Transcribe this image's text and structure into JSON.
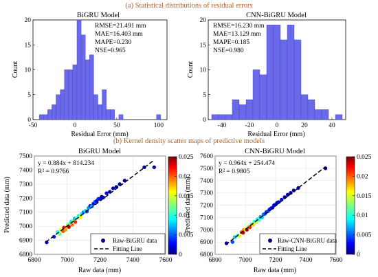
{
  "section_a_title": "(a) Statistical distributions of residual errors",
  "section_b_title": "(b) Kernel density scatter maps of predictive models",
  "colors": {
    "bar": "#6a6ae8",
    "bar_edge": "#3a3ad0",
    "title": "#b0612a",
    "point": "#00007f",
    "fit": "#000000"
  },
  "chart_data": [
    {
      "type": "bar",
      "title": "BiGRU Model",
      "xlabel": "Residual Error (mm)",
      "ylabel": "Count",
      "xlim": [
        -50,
        110
      ],
      "ylim": [
        0,
        20
      ],
      "xticks": [
        -50,
        0,
        50,
        100
      ],
      "yticks": [
        0,
        5,
        10,
        15,
        20
      ],
      "bin_width": 5,
      "bins": [
        {
          "x": -40,
          "count": 1
        },
        {
          "x": -35,
          "count": 1
        },
        {
          "x": -30,
          "count": 2
        },
        {
          "x": -25,
          "count": 3
        },
        {
          "x": -20,
          "count": 5
        },
        {
          "x": -15,
          "count": 6
        },
        {
          "x": -10,
          "count": 10
        },
        {
          "x": -5,
          "count": 10
        },
        {
          "x": 0,
          "count": 11
        },
        {
          "x": 5,
          "count": 20
        },
        {
          "x": 10,
          "count": 17
        },
        {
          "x": 15,
          "count": 12
        },
        {
          "x": 20,
          "count": 13
        },
        {
          "x": 25,
          "count": 5
        },
        {
          "x": 30,
          "count": 3
        },
        {
          "x": 35,
          "count": 6
        },
        {
          "x": 40,
          "count": 2
        },
        {
          "x": 45,
          "count": 2
        },
        {
          "x": 55,
          "count": 1
        },
        {
          "x": 100,
          "count": 1
        }
      ],
      "stats": [
        "RMSE=21.491 mm",
        "MAE=16.403 mm",
        "MAPE=0.230",
        "NSE=0.965"
      ]
    },
    {
      "type": "bar",
      "title": "CNN-BiGRU Model",
      "xlabel": "Residual Error (mm)",
      "ylabel": "Count",
      "xlim": [
        -50,
        50
      ],
      "ylim": [
        0,
        20
      ],
      "xticks": [
        -40,
        -20,
        0,
        20,
        40
      ],
      "yticks": [
        0,
        5,
        10,
        15,
        20
      ],
      "bin_width": 5,
      "bins": [
        {
          "x": -45,
          "count": 1
        },
        {
          "x": -40,
          "count": 1
        },
        {
          "x": -35,
          "count": 1
        },
        {
          "x": -30,
          "count": 4
        },
        {
          "x": -25,
          "count": 3
        },
        {
          "x": -20,
          "count": 4
        },
        {
          "x": -15,
          "count": 10
        },
        {
          "x": -10,
          "count": 9
        },
        {
          "x": -5,
          "count": 19
        },
        {
          "x": 0,
          "count": 19
        },
        {
          "x": 5,
          "count": 16
        },
        {
          "x": 10,
          "count": 19
        },
        {
          "x": 15,
          "count": 16
        },
        {
          "x": 20,
          "count": 5
        },
        {
          "x": 25,
          "count": 4
        },
        {
          "x": 30,
          "count": 2
        },
        {
          "x": 35,
          "count": 2
        },
        {
          "x": 45,
          "count": 1
        }
      ],
      "stats": [
        "RMSE=16.230 mm",
        "MAE=13.129 mm",
        "MAPE=0.185",
        "NSE=0.980"
      ]
    },
    {
      "type": "scatter",
      "title": "BiGRU Model",
      "xlabel": "Raw data (mm)",
      "ylabel": "Predicted data (mm)",
      "xlim": [
        6800,
        7600
      ],
      "ylim": [
        6800,
        7500
      ],
      "xticks": [
        6800,
        7000,
        7200,
        7400,
        7600
      ],
      "yticks": [
        6800,
        6900,
        7000,
        7100,
        7200,
        7300,
        7400,
        7500
      ],
      "equation": "y = 0.884x + 814.234",
      "r2": "R² = 0.9766",
      "fit": {
        "slope": 0.884,
        "intercept": 814.234,
        "x_range": [
          6870,
          7530
        ]
      },
      "legend": {
        "points": "Raw-BiGRU data",
        "line": "Fitting Line",
        "location": "lower-right"
      },
      "colorbar": {
        "min": 0,
        "max": 0.025,
        "ticks": [
          "0",
          "0.005",
          "0.01",
          "0.015",
          "0.02",
          "0.025"
        ]
      },
      "points": [
        [
          6875,
          6885,
          0.002
        ],
        [
          6920,
          6925,
          0.004
        ],
        [
          6940,
          6960,
          0.01
        ],
        [
          6955,
          6945,
          0.012
        ],
        [
          6960,
          6975,
          0.015
        ],
        [
          6975,
          6965,
          0.02
        ],
        [
          6980,
          6990,
          0.022
        ],
        [
          6990,
          6975,
          0.018
        ],
        [
          7000,
          7000,
          0.016
        ],
        [
          7005,
          7015,
          0.013
        ],
        [
          7010,
          6995,
          0.024
        ],
        [
          7020,
          7020,
          0.011
        ],
        [
          7025,
          7035,
          0.009
        ],
        [
          7030,
          7010,
          0.019
        ],
        [
          7040,
          7040,
          0.014
        ],
        [
          7045,
          7055,
          0.008
        ],
        [
          7050,
          7030,
          0.021
        ],
        [
          7060,
          7060,
          0.012
        ],
        [
          7070,
          7075,
          0.01
        ],
        [
          7080,
          7065,
          0.016
        ],
        [
          7090,
          7090,
          0.009
        ],
        [
          7100,
          7100,
          0.006
        ],
        [
          7110,
          7110,
          0.01
        ],
        [
          7120,
          7105,
          0.005
        ],
        [
          7130,
          7130,
          0.007
        ],
        [
          7140,
          7145,
          0.004
        ],
        [
          7150,
          7140,
          0.008
        ],
        [
          7160,
          7160,
          0.003
        ],
        [
          7170,
          7175,
          0.005
        ],
        [
          7180,
          7180,
          0.002
        ],
        [
          7190,
          7195,
          0.004
        ],
        [
          7200,
          7195,
          0.003
        ],
        [
          7210,
          7210,
          0.002
        ],
        [
          7220,
          7205,
          0.001
        ],
        [
          7240,
          7235,
          0.002
        ],
        [
          7260,
          7245,
          0.001
        ],
        [
          7280,
          7270,
          0.001
        ],
        [
          7300,
          7280,
          0.001
        ],
        [
          7320,
          7300,
          0.001
        ],
        [
          7350,
          7325,
          0.001
        ],
        [
          7470,
          7420,
          0.001
        ],
        [
          7530,
          7420,
          0.0005
        ]
      ]
    },
    {
      "type": "scatter",
      "title": "CNN-BiGRU Model",
      "xlabel": "Raw data (mm)",
      "ylabel": "Predicted data (mm)",
      "xlim": [
        6800,
        7600
      ],
      "ylim": [
        6800,
        7600
      ],
      "xticks": [
        6800,
        7000,
        7200,
        7400,
        7600
      ],
      "yticks": [
        6800,
        6900,
        7000,
        7100,
        7200,
        7300,
        7400,
        7500,
        7600
      ],
      "equation": "y = 0.964x + 254.474",
      "r2": "R² = 0.9805",
      "fit": {
        "slope": 0.964,
        "intercept": 254.474,
        "x_range": [
          6870,
          7530
        ]
      },
      "legend": {
        "points": "Raw-CNN-BiGRU data",
        "line": "Fitting Line",
        "location": "lower-right"
      },
      "colorbar": {
        "min": 0,
        "max": 0.025,
        "ticks": [
          "0",
          "0.005",
          "0.01",
          "0.015",
          "0.02",
          "0.025"
        ]
      },
      "points": [
        [
          6875,
          6890,
          0.002
        ],
        [
          6915,
          6900,
          0.005
        ],
        [
          6930,
          6940,
          0.008
        ],
        [
          6950,
          6955,
          0.011
        ],
        [
          6960,
          6950,
          0.015
        ],
        [
          6975,
          6980,
          0.02
        ],
        [
          6985,
          6975,
          0.023
        ],
        [
          6990,
          7000,
          0.019
        ],
        [
          7000,
          7005,
          0.016
        ],
        [
          7010,
          7000,
          0.024
        ],
        [
          7020,
          7025,
          0.013
        ],
        [
          7030,
          7020,
          0.021
        ],
        [
          7040,
          7045,
          0.012
        ],
        [
          7050,
          7040,
          0.017
        ],
        [
          7060,
          7065,
          0.01
        ],
        [
          7070,
          7060,
          0.014
        ],
        [
          7080,
          7085,
          0.009
        ],
        [
          7090,
          7080,
          0.011
        ],
        [
          7100,
          7105,
          0.007
        ],
        [
          7110,
          7100,
          0.008
        ],
        [
          7120,
          7125,
          0.006
        ],
        [
          7130,
          7130,
          0.005
        ],
        [
          7140,
          7145,
          0.004
        ],
        [
          7150,
          7150,
          0.005
        ],
        [
          7160,
          7165,
          0.003
        ],
        [
          7170,
          7175,
          0.004
        ],
        [
          7180,
          7180,
          0.002
        ],
        [
          7190,
          7200,
          0.003
        ],
        [
          7200,
          7205,
          0.002
        ],
        [
          7210,
          7220,
          0.002
        ],
        [
          7220,
          7225,
          0.001
        ],
        [
          7240,
          7245,
          0.002
        ],
        [
          7260,
          7265,
          0.001
        ],
        [
          7280,
          7285,
          0.001
        ],
        [
          7300,
          7300,
          0.001
        ],
        [
          7320,
          7320,
          0.001
        ],
        [
          7350,
          7340,
          0.001
        ],
        [
          7530,
          7500,
          0.0005
        ]
      ]
    }
  ]
}
